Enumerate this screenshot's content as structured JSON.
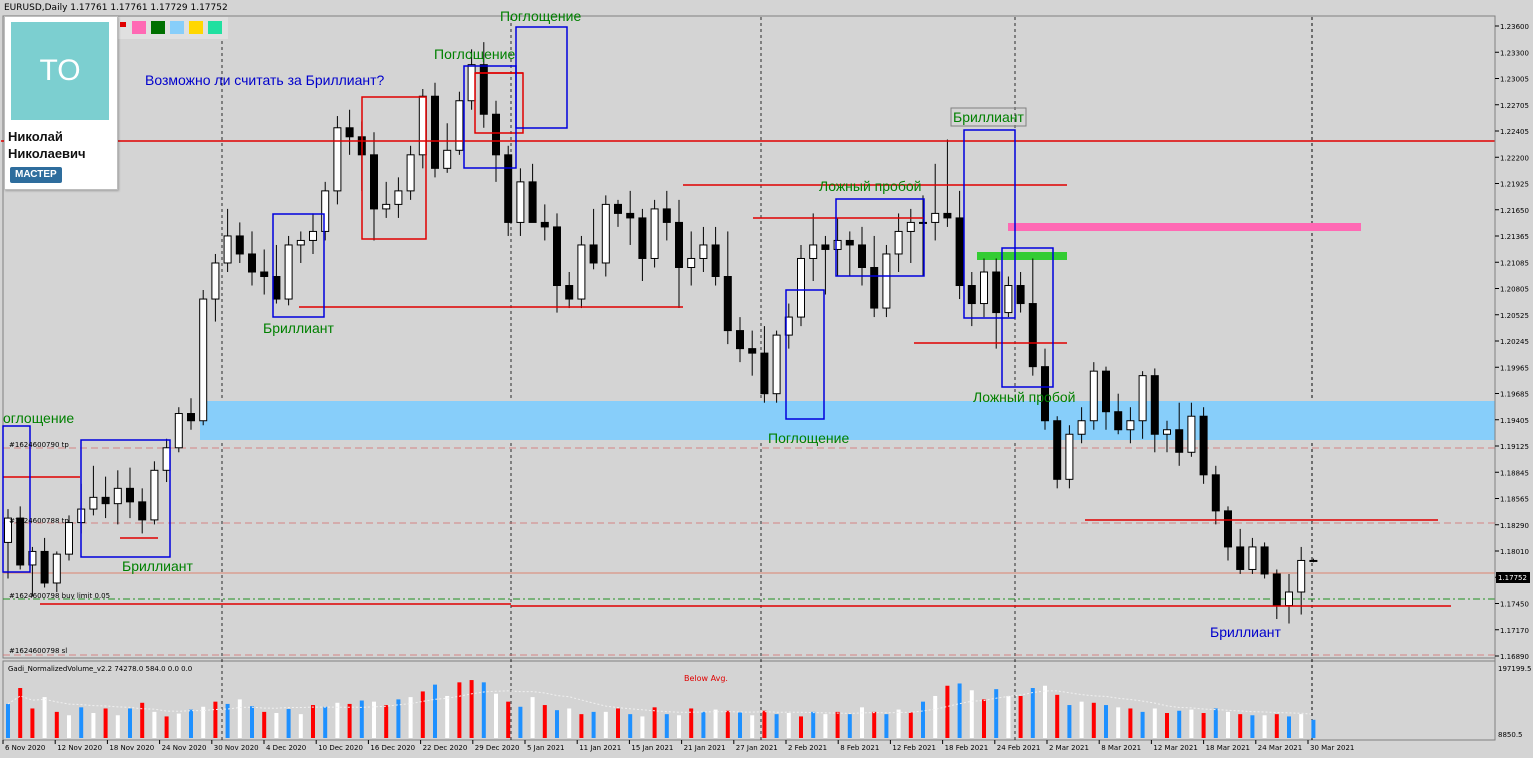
{
  "header": {
    "symbol_line": "EURUSD,Daily  1.17761 1.17761 1.17729 1.17752"
  },
  "profile": {
    "initials": "TO",
    "name": "Николай Николаевич",
    "badge": "МАСТЕР"
  },
  "colors": {
    "bull": "#ffffff",
    "bear": "#000000",
    "resistance": "#e00000",
    "box": "#0000dd",
    "zone": "#87cefa",
    "pink": "#ff69b4",
    "green_bar": "#33cc33",
    "vol_red": "#ff0000",
    "vol_blue": "#1e90ff",
    "vol_white": "#ffffff",
    "annotation_green": "#008000",
    "annotation_blue": "#0000cc"
  },
  "chart_data": [
    {
      "type": "candlestick",
      "symbol": "EURUSD",
      "timeframe": "Daily",
      "ylim": [
        1.1669,
        1.2379
      ],
      "grid": true,
      "y_ticks": [
        "1.23600",
        "1.23300",
        "1.23005",
        "1.22705",
        "1.22405",
        "1.22200",
        "1.21925",
        "1.21650",
        "1.21365",
        "1.21085",
        "1.20805",
        "1.20525",
        "1.20245",
        "1.19965",
        "1.19685",
        "1.19405",
        "1.19125",
        "1.18845",
        "1.18565",
        "1.18290",
        "1.18010",
        "1.17730",
        "1.17450",
        "1.17170",
        "1.16890"
      ],
      "x_ticks": [
        "6 Nov 2020",
        "12 Nov 2020",
        "18 Nov 2020",
        "24 Nov 2020",
        "30 Nov 2020",
        "4 Dec 2020",
        "10 Dec 2020",
        "16 Dec 2020",
        "22 Dec 2020",
        "29 Dec 2020",
        "5 Jan 2021",
        "11 Jan 2021",
        "15 Jan 2021",
        "21 Jan 2021",
        "27 Jan 2021",
        "2 Feb 2021",
        "8 Feb 2021",
        "12 Feb 2021",
        "18 Feb 2021",
        "24 Feb 2021",
        "2 Mar 2021",
        "8 Mar 2021",
        "12 Mar 2021",
        "18 Mar 2021",
        "24 Mar 2021",
        "30 Mar 2021"
      ],
      "ohlc": [
        [
          1.1795,
          1.1832,
          1.1755,
          1.1822
        ],
        [
          1.1822,
          1.1835,
          1.1765,
          1.177
        ],
        [
          1.177,
          1.179,
          1.1735,
          1.1785
        ],
        [
          1.1785,
          1.18,
          1.1745,
          1.175
        ],
        [
          1.175,
          1.1785,
          1.174,
          1.1782
        ],
        [
          1.1782,
          1.1825,
          1.1775,
          1.1817
        ],
        [
          1.1817,
          1.186,
          1.1805,
          1.1832
        ],
        [
          1.1832,
          1.188,
          1.1825,
          1.1845
        ],
        [
          1.1845,
          1.1868,
          1.1822,
          1.1838
        ],
        [
          1.1838,
          1.1875,
          1.1815,
          1.1855
        ],
        [
          1.1855,
          1.1878,
          1.1822,
          1.184
        ],
        [
          1.184,
          1.1855,
          1.1805,
          1.182
        ],
        [
          1.182,
          1.1885,
          1.1815,
          1.1875
        ],
        [
          1.1875,
          1.191,
          1.1862,
          1.19
        ],
        [
          1.19,
          1.1945,
          1.1895,
          1.1938
        ],
        [
          1.1938,
          1.1955,
          1.192,
          1.193
        ],
        [
          1.193,
          1.2075,
          1.1925,
          1.2065
        ],
        [
          1.2065,
          1.2115,
          1.204,
          1.2105
        ],
        [
          1.2105,
          1.2165,
          1.2095,
          1.2135
        ],
        [
          1.2135,
          1.215,
          1.2105,
          1.2115
        ],
        [
          1.2115,
          1.214,
          1.208,
          1.2095
        ],
        [
          1.2095,
          1.212,
          1.207,
          1.209
        ],
        [
          1.209,
          1.2125,
          1.206,
          1.2065
        ],
        [
          1.2065,
          1.2135,
          1.2058,
          1.2125
        ],
        [
          1.2125,
          1.214,
          1.2105,
          1.213
        ],
        [
          1.213,
          1.216,
          1.2115,
          1.214
        ],
        [
          1.214,
          1.2195,
          1.213,
          1.2185
        ],
        [
          1.2185,
          1.2268,
          1.217,
          1.2255
        ],
        [
          1.2255,
          1.2275,
          1.2225,
          1.2245
        ],
        [
          1.2245,
          1.2262,
          1.2185,
          1.2225
        ],
        [
          1.2225,
          1.225,
          1.213,
          1.2165
        ],
        [
          1.2165,
          1.2195,
          1.2155,
          1.217
        ],
        [
          1.217,
          1.22,
          1.2155,
          1.2185
        ],
        [
          1.2185,
          1.2235,
          1.2175,
          1.2225
        ],
        [
          1.2225,
          1.2298,
          1.221,
          1.229
        ],
        [
          1.229,
          1.2305,
          1.22,
          1.221
        ],
        [
          1.221,
          1.226,
          1.2205,
          1.223
        ],
        [
          1.223,
          1.2295,
          1.2225,
          1.2285
        ],
        [
          1.2285,
          1.2342,
          1.2275,
          1.2325
        ],
        [
          1.2325,
          1.235,
          1.2255,
          1.227
        ],
        [
          1.227,
          1.2285,
          1.2195,
          1.2225
        ],
        [
          1.2225,
          1.2235,
          1.2135,
          1.215
        ],
        [
          1.215,
          1.221,
          1.2135,
          1.2195
        ],
        [
          1.2195,
          1.2215,
          1.2155,
          1.215
        ],
        [
          1.215,
          1.217,
          1.213,
          1.2145
        ],
        [
          1.2145,
          1.216,
          1.205,
          1.208
        ],
        [
          1.208,
          1.2095,
          1.2055,
          1.2065
        ],
        [
          1.2065,
          1.2135,
          1.2055,
          1.2125
        ],
        [
          1.2125,
          1.2165,
          1.2098,
          1.2105
        ],
        [
          1.2105,
          1.218,
          1.209,
          1.217
        ],
        [
          1.217,
          1.2175,
          1.2145,
          1.216
        ],
        [
          1.216,
          1.2185,
          1.2125,
          1.2155
        ],
        [
          1.2155,
          1.2165,
          1.2085,
          1.211
        ],
        [
          1.211,
          1.2175,
          1.21,
          1.2165
        ],
        [
          1.2165,
          1.2185,
          1.213,
          1.215
        ],
        [
          1.215,
          1.2175,
          1.2055,
          1.21
        ],
        [
          1.21,
          1.214,
          1.208,
          1.211
        ],
        [
          1.211,
          1.2145,
          1.2095,
          1.2125
        ],
        [
          1.2125,
          1.2145,
          1.208,
          1.209
        ],
        [
          1.209,
          1.214,
          1.2015,
          1.203
        ],
        [
          1.203,
          1.2045,
          1.1995,
          1.201
        ],
        [
          1.201,
          1.203,
          1.198,
          1.2005
        ],
        [
          1.2005,
          1.2035,
          1.195,
          1.196
        ],
        [
          1.196,
          1.203,
          1.195,
          1.2025
        ],
        [
          1.2025,
          1.206,
          1.201,
          1.2045
        ],
        [
          1.2045,
          1.2125,
          1.2035,
          1.211
        ],
        [
          1.211,
          1.216,
          1.2085,
          1.2125
        ],
        [
          1.2125,
          1.2135,
          1.207,
          1.212
        ],
        [
          1.212,
          1.2155,
          1.209,
          1.213
        ],
        [
          1.213,
          1.214,
          1.209,
          1.2125
        ],
        [
          1.2125,
          1.2145,
          1.208,
          1.21
        ],
        [
          1.21,
          1.2135,
          1.2045,
          1.2055
        ],
        [
          1.2055,
          1.2125,
          1.2045,
          1.2115
        ],
        [
          1.2115,
          1.216,
          1.2095,
          1.214
        ],
        [
          1.214,
          1.2165,
          1.2105,
          1.215
        ],
        [
          1.215,
          1.218,
          1.209,
          1.215
        ],
        [
          1.215,
          1.2215,
          1.213,
          1.216
        ],
        [
          1.216,
          1.2242,
          1.2145,
          1.2155
        ],
        [
          1.2155,
          1.2185,
          1.2065,
          1.208
        ],
        [
          1.208,
          1.2095,
          1.2035,
          1.206
        ],
        [
          1.206,
          1.211,
          1.2045,
          1.2095
        ],
        [
          1.2095,
          1.211,
          1.201,
          1.205
        ],
        [
          1.205,
          1.209,
          1.2045,
          1.208
        ],
        [
          1.208,
          1.2095,
          1.205,
          1.206
        ],
        [
          1.206,
          1.211,
          1.198,
          1.199
        ],
        [
          1.199,
          1.201,
          1.192,
          1.193
        ],
        [
          1.193,
          1.1935,
          1.1855,
          1.1865
        ],
        [
          1.1865,
          1.1925,
          1.1855,
          1.1915
        ],
        [
          1.1915,
          1.1945,
          1.1905,
          1.193
        ],
        [
          1.193,
          1.1995,
          1.192,
          1.1985
        ],
        [
          1.1985,
          1.199,
          1.192,
          1.194
        ],
        [
          1.194,
          1.196,
          1.1915,
          1.192
        ],
        [
          1.192,
          1.1945,
          1.1905,
          1.193
        ],
        [
          1.193,
          1.1985,
          1.191,
          1.198
        ],
        [
          1.198,
          1.1988,
          1.1895,
          1.1915
        ],
        [
          1.1915,
          1.193,
          1.1895,
          1.192
        ],
        [
          1.192,
          1.195,
          1.188,
          1.1895
        ],
        [
          1.1895,
          1.195,
          1.189,
          1.1935
        ],
        [
          1.1935,
          1.1945,
          1.186,
          1.187
        ],
        [
          1.187,
          1.188,
          1.1815,
          1.183
        ],
        [
          1.183,
          1.1835,
          1.1775,
          1.179
        ],
        [
          1.179,
          1.181,
          1.176,
          1.1765
        ],
        [
          1.1765,
          1.18,
          1.176,
          1.179
        ],
        [
          1.179,
          1.1795,
          1.1755,
          1.176
        ],
        [
          1.176,
          1.1765,
          1.171,
          1.1725
        ],
        [
          1.1725,
          1.176,
          1.1705,
          1.174
        ],
        [
          1.174,
          1.179,
          1.1715,
          1.1775
        ],
        [
          1.1775,
          1.1777,
          1.1773,
          1.1775
        ]
      ],
      "current_price": "1.17752",
      "horizontal_levels": [
        {
          "price": 1.2238,
          "style": "resistance"
        },
        {
          "price": 1.1838,
          "style": "resistance"
        },
        {
          "price": 1.1746,
          "style": "resistance"
        }
      ],
      "order_labels": [
        "#1624600790 tp",
        "#1624600788 tp",
        "#1624600798 buy limit 0.05",
        "#1624600798 sl"
      ],
      "annotations": [
        "Поглощение",
        "Поглощение",
        "Возможно ли считать за Бриллиант?",
        "Бриллиант",
        "Бриллиант",
        "Поглощение",
        "Ложный пробой",
        "Бриллиант",
        "Ложный пробой",
        "Поглощение",
        "Бриллиант",
        "оглощение"
      ]
    },
    {
      "type": "bar",
      "title": "Gadi_NormalizedVolume_v2.2 74278.0 584.0 0.0 0.0",
      "annotation": "Below Avg.",
      "y_ticks": [
        "197199.5",
        "8850.5"
      ],
      "ylim": [
        0,
        197199.5
      ],
      "values": [
        60000,
        88000,
        52000,
        72000,
        46000,
        40000,
        54000,
        44000,
        52000,
        40000,
        52000,
        62000,
        46000,
        38000,
        43000,
        50000,
        55000,
        64000,
        60000,
        68000,
        56000,
        46000,
        44000,
        51000,
        42000,
        58000,
        55000,
        62000,
        60000,
        66000,
        64000,
        58000,
        68000,
        72000,
        82000,
        94000,
        74000,
        98000,
        102000,
        98000,
        78000,
        64000,
        55000,
        72000,
        58000,
        49000,
        52000,
        42000,
        46000,
        46000,
        52000,
        42000,
        38000,
        54000,
        42000,
        40000,
        52000,
        46000,
        50000,
        48000,
        45000,
        40000,
        48000,
        42000,
        44000,
        38000,
        46000,
        42000,
        46000,
        42000,
        54000,
        46000,
        42000,
        50000,
        45000,
        64000,
        74000,
        92000,
        96000,
        84000,
        68000,
        86000,
        74000,
        74000,
        88000,
        92000,
        76000,
        58000,
        64000,
        62000,
        58000,
        54000,
        52000,
        46000,
        52000,
        44000,
        48000,
        50000,
        44000,
        52000,
        46000,
        42000,
        40000,
        40000,
        42000,
        38000,
        42000,
        32000
      ],
      "colors": [
        "blue",
        "red",
        "red",
        "white",
        "red",
        "white",
        "blue",
        "white",
        "red",
        "white",
        "blue",
        "red",
        "white",
        "red",
        "white",
        "blue",
        "white",
        "red",
        "blue",
        "white",
        "blue",
        "red",
        "white",
        "blue",
        "white",
        "red",
        "blue",
        "white",
        "red",
        "blue",
        "white",
        "red",
        "blue",
        "white",
        "red",
        "blue",
        "white",
        "red",
        "red",
        "blue",
        "white",
        "red",
        "blue",
        "white",
        "red",
        "blue",
        "white",
        "red",
        "blue",
        "white",
        "red",
        "blue",
        "white",
        "red",
        "blue",
        "white",
        "red",
        "blue",
        "white",
        "red",
        "blue",
        "white",
        "red",
        "blue",
        "white",
        "red",
        "blue",
        "white",
        "red",
        "blue",
        "white",
        "red",
        "blue",
        "white",
        "red",
        "blue",
        "white",
        "red",
        "blue",
        "white",
        "red",
        "blue",
        "white",
        "red",
        "blue",
        "white",
        "red",
        "blue",
        "white",
        "red",
        "blue",
        "white",
        "red",
        "blue",
        "white",
        "red",
        "blue",
        "white",
        "red",
        "blue",
        "white",
        "red",
        "blue",
        "white",
        "red",
        "blue",
        "white",
        "blue"
      ]
    }
  ]
}
